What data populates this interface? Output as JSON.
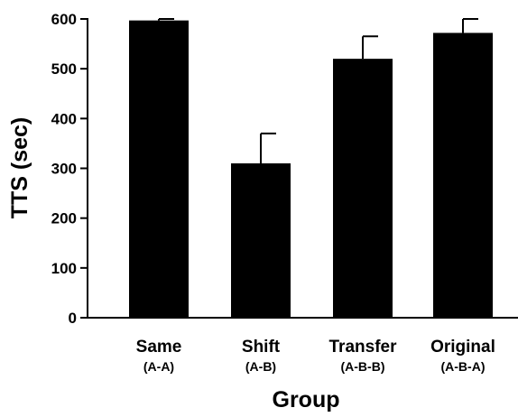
{
  "chart_data": {
    "type": "bar",
    "categories": [
      "Same",
      "Shift",
      "Transfer",
      "Original"
    ],
    "category_sublabels": [
      "(A-A)",
      "(A-B)",
      "(A-B-B)",
      "(A-B-A)"
    ],
    "values": [
      597,
      310,
      520,
      572
    ],
    "error_upper": [
      600,
      370,
      565,
      600
    ],
    "xlabel": "Group",
    "ylabel": "TTS (sec)",
    "ylim": [
      0,
      600
    ],
    "yticks": [
      0,
      100,
      200,
      300,
      400,
      500,
      600
    ],
    "grid": false,
    "bar_color": "#000000"
  }
}
